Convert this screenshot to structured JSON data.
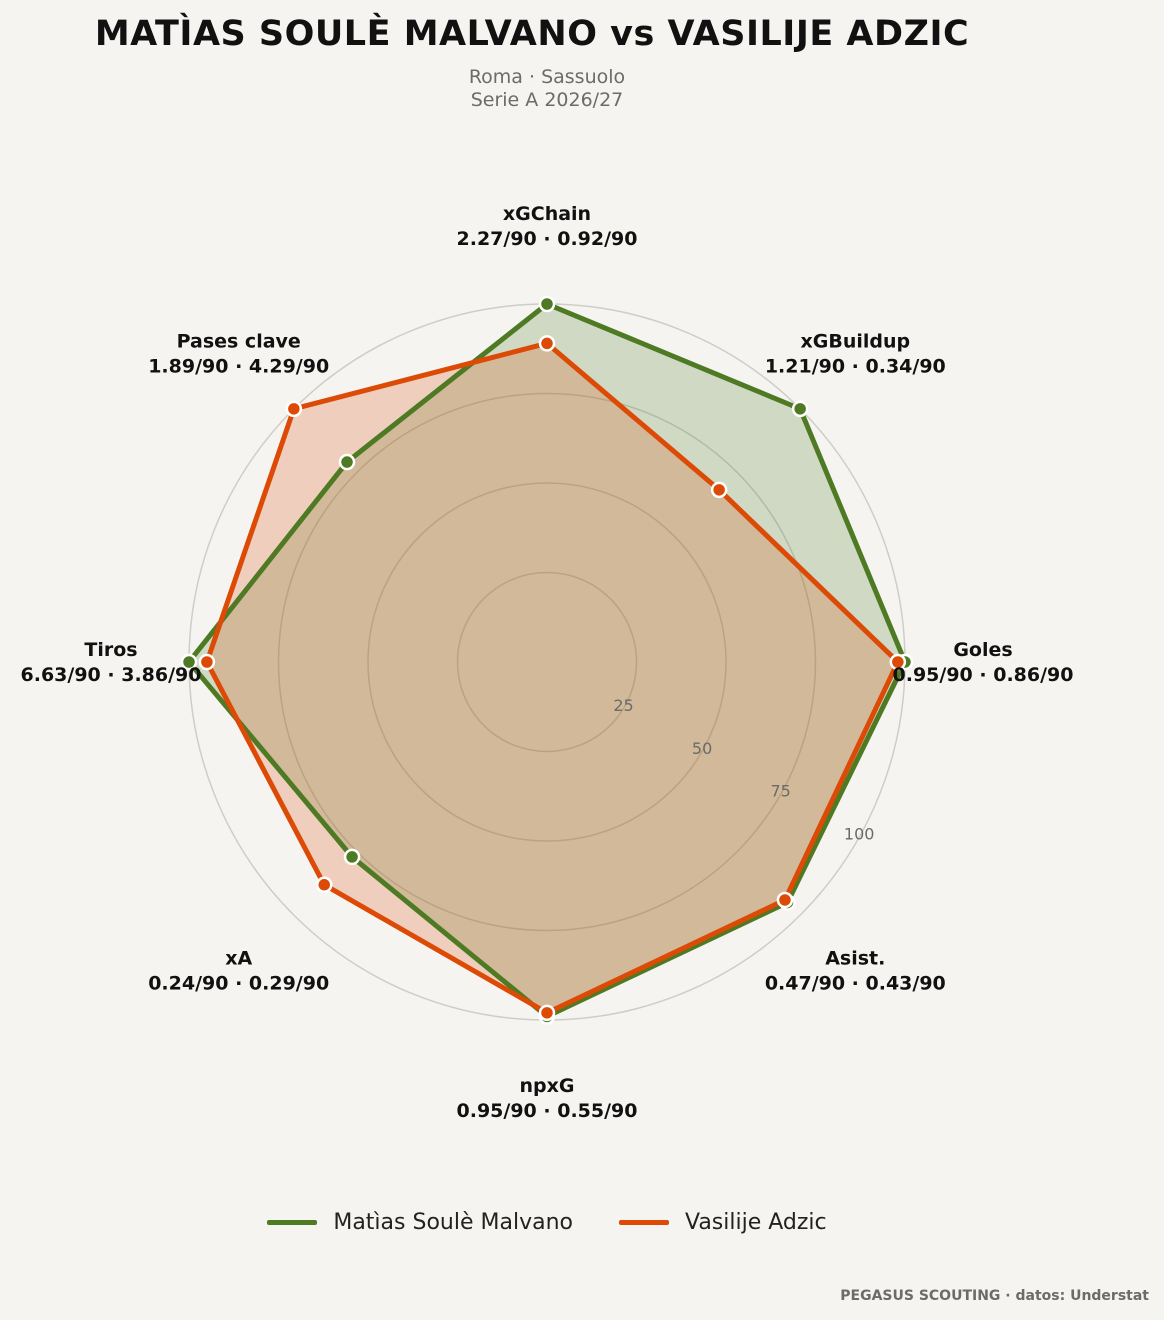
{
  "header": {
    "title": "MATÌAS SOULÈ MALVANO  vs  VASILIJE ADZIC",
    "subtitle_line1": "Roma · Sassuolo",
    "subtitle_line2": "Serie A 2026/27"
  },
  "footer": {
    "credit": "PEGASUS SCOUTING · datos: Understat"
  },
  "colors": {
    "series1": "#4e7a23",
    "series2": "#dc4a06",
    "grid": "#cfcdc8",
    "background": "#f5f4f1"
  },
  "chart_data": {
    "type": "radar",
    "rmax": 100,
    "ring_ticks": [
      25,
      50,
      75,
      100
    ],
    "axes": [
      {
        "name": "xGChain",
        "values_text": "2.27/90 · 0.92/90"
      },
      {
        "name": "xGBuildup",
        "values_text": "1.21/90 · 0.34/90"
      },
      {
        "name": "Goles",
        "values_text": "0.95/90 · 0.86/90"
      },
      {
        "name": "Asist.",
        "values_text": "0.47/90 · 0.43/90"
      },
      {
        "name": "npxG",
        "values_text": "0.95/90 · 0.55/90"
      },
      {
        "name": "xA",
        "values_text": "0.24/90 · 0.29/90"
      },
      {
        "name": "Tiros",
        "values_text": "6.63/90 · 3.86/90"
      },
      {
        "name": "Pases clave",
        "values_text": "1.89/90 · 4.29/90"
      }
    ],
    "series": [
      {
        "name": "Matìas Soulè Malvano",
        "values": [
          100,
          100,
          100,
          95,
          99,
          77,
          100,
          79
        ]
      },
      {
        "name": "Vasilije Adzic",
        "values": [
          89,
          68,
          98,
          94,
          98,
          88,
          95,
          100
        ]
      }
    ],
    "legend_position": "bottom"
  }
}
